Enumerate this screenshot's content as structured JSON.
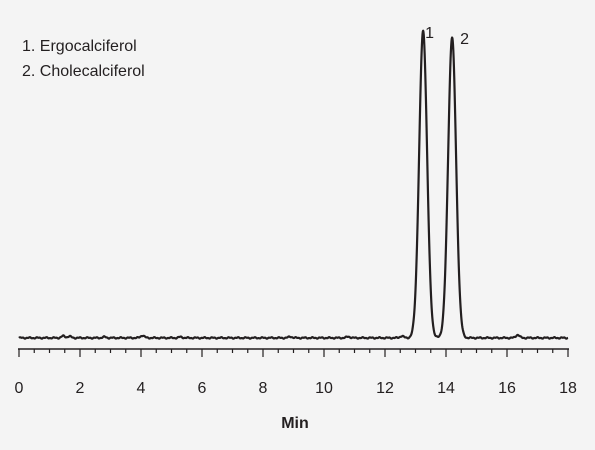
{
  "chart_data": {
    "type": "line",
    "xlabel": "Min",
    "ylabel": "",
    "xlim": [
      0,
      18
    ],
    "ylim": [
      0,
      100
    ],
    "grid": false,
    "legend_placement": "top-left",
    "xticks": [
      0,
      2,
      4,
      6,
      8,
      10,
      12,
      14,
      16,
      18
    ],
    "legend": [
      "1. Ergocalciferol",
      "2. Cholecalciferol"
    ],
    "peaks": [
      {
        "label": "1",
        "x": 13.25,
        "y": 100,
        "width": 0.13
      },
      {
        "label": "2",
        "x": 14.2,
        "y": 98,
        "width": 0.13
      }
    ],
    "baseline": 1,
    "baseline_bumps": [
      {
        "x": 1.45,
        "y": 0.6
      },
      {
        "x": 1.65,
        "y": 0.5
      },
      {
        "x": 2.8,
        "y": 0.3
      },
      {
        "x": 4.05,
        "y": 0.8
      },
      {
        "x": 5.3,
        "y": 0.3
      },
      {
        "x": 8.9,
        "y": 0.4
      },
      {
        "x": 10.8,
        "y": 0.4
      },
      {
        "x": 12.55,
        "y": 0.6
      },
      {
        "x": 16.35,
        "y": 1.0
      }
    ],
    "series": [
      {
        "color": "#231f20"
      }
    ]
  }
}
